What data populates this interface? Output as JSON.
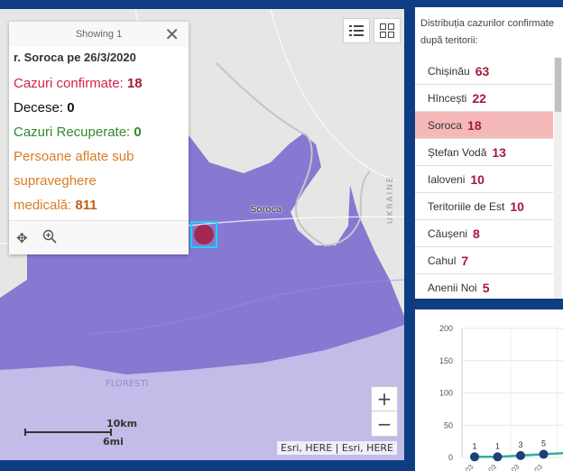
{
  "map": {
    "places": {
      "soroca": "Soroca",
      "ukraine": "UKRAINE",
      "floresti": "FLORESTI"
    },
    "zoom_in": "+",
    "zoom_out": "−",
    "attribution": "Esri, HERE | Esri, HERE",
    "scale": {
      "km": "10km",
      "mi": "6mi"
    },
    "tools": [
      "legend-icon",
      "basemap-gallery-icon"
    ],
    "colors": {
      "region": "#8778d1",
      "region_light": "#c3bbe8",
      "marker": "#a4284f",
      "marker_outline": "#1ad6f5"
    }
  },
  "popup": {
    "showing": "Showing 1",
    "close": "✕",
    "title": "r. Soroca pe 26/3/2020",
    "confirmed_label": "Cazuri confirmate:",
    "confirmed_value": "18",
    "deaths_label": "Decese:",
    "deaths_value": "0",
    "recovered_label": "Cazuri Recuperate:",
    "recovered_value": "0",
    "supervised_label_1": "Persoane aflate sub",
    "supervised_label_2": "supraveghere",
    "supervised_label_3": "medicală:",
    "supervised_value": "811",
    "foot_icons": [
      "move-icon",
      "zoom-to-icon"
    ]
  },
  "list": {
    "header": "Distribuția cazurilor confirmate după teritorii:",
    "items": [
      {
        "name": "Chișinău",
        "value": "63"
      },
      {
        "name": "Hîncești",
        "value": "22"
      },
      {
        "name": "Soroca",
        "value": "18",
        "selected": true
      },
      {
        "name": "Ștefan Vodă",
        "value": "13"
      },
      {
        "name": "Ialoveni",
        "value": "10"
      },
      {
        "name": "Teritoriile de Est",
        "value": "10"
      },
      {
        "name": "Căușeni",
        "value": "8"
      },
      {
        "name": "Cahul",
        "value": "7"
      },
      {
        "name": "Anenii Noi",
        "value": "5"
      }
    ]
  },
  "chart_data": {
    "type": "line",
    "ylim": [
      0,
      200
    ],
    "yticks": [
      "200",
      "150",
      "100",
      "50",
      "0"
    ],
    "points": [
      {
        "label": "1",
        "value": 1
      },
      {
        "label": "1",
        "value": 1
      },
      {
        "label": "3",
        "value": 3
      },
      {
        "label": "5",
        "value": 5
      }
    ],
    "xtick_labels": [
      "03",
      "03",
      "03",
      "03"
    ],
    "colors": {
      "line": "#2ab0a0",
      "point": "#1f3f7a"
    }
  }
}
